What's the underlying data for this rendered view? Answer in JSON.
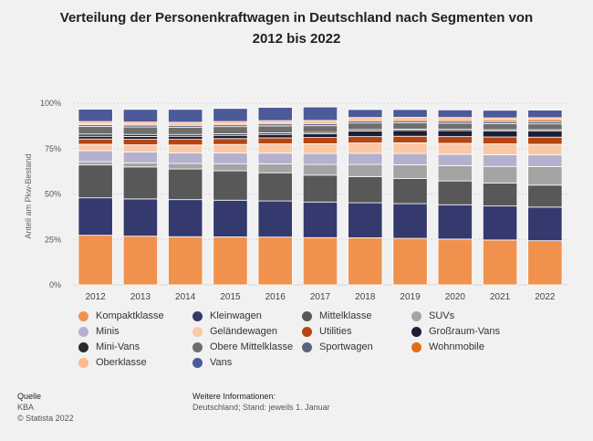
{
  "title": "Verteilung der Personenkraftwagen in Deutschland nach Segmenten von 2012 bis 2022",
  "footer": {
    "source_label": "Quelle",
    "source_name": "KBA",
    "copyright": "© Statista 2022",
    "info_label": "Weitere Informationen:",
    "info_text": "Deutschland; Stand: jeweils 1. Januar"
  },
  "chart_data": {
    "type": "bar",
    "stacked": true,
    "ylabel": "Anteil am Pkw-Bestand",
    "ylim": [
      0,
      100
    ],
    "yticks": [
      "0%",
      "25%",
      "50%",
      "75%",
      "100%"
    ],
    "ytick_values": [
      0,
      25,
      50,
      75,
      100
    ],
    "legend_position": "bottom",
    "grid": true,
    "categories": [
      "2012",
      "2013",
      "2014",
      "2015",
      "2016",
      "2017",
      "2018",
      "2019",
      "2020",
      "2021",
      "2022"
    ],
    "series": [
      {
        "name": "Kompaktklasse",
        "color": "#f0924e",
        "values": [
          27.3,
          26.8,
          26.5,
          26.4,
          26.3,
          26.0,
          25.9,
          25.6,
          25.2,
          24.7,
          24.3
        ]
      },
      {
        "name": "Kleinwagen",
        "color": "#343a6e",
        "values": [
          20.6,
          20.5,
          20.4,
          20.2,
          19.9,
          19.6,
          19.3,
          19.1,
          18.9,
          18.7,
          18.5
        ]
      },
      {
        "name": "Mittelklasse",
        "color": "#585858",
        "values": [
          18.1,
          17.6,
          16.9,
          16.2,
          15.5,
          14.8,
          14.3,
          13.8,
          13.1,
          12.6,
          12.1
        ]
      },
      {
        "name": "SUVs",
        "color": "#a4a4a4",
        "values": [
          1.8,
          2.3,
          3.0,
          3.9,
          4.9,
          5.9,
          6.8,
          7.6,
          8.4,
          9.2,
          10.2
        ]
      },
      {
        "name": "Minis",
        "color": "#b3b1cd",
        "values": [
          6.1,
          6.0,
          5.9,
          5.9,
          5.9,
          6.0,
          6.1,
          6.2,
          6.3,
          6.4,
          6.4
        ]
      },
      {
        "name": "Geländewagen",
        "color": "#fac8a6",
        "values": [
          3.5,
          3.9,
          4.3,
          4.7,
          5.1,
          5.4,
          5.7,
          5.9,
          6.0,
          6.0,
          5.9
        ]
      },
      {
        "name": "Utilities",
        "color": "#b54512",
        "values": [
          2.9,
          3.0,
          3.1,
          3.2,
          3.3,
          3.4,
          3.5,
          3.6,
          3.7,
          3.8,
          3.9
        ]
      },
      {
        "name": "Großraum-Vans",
        "color": "#1d1d34",
        "values": [
          1.5,
          1.6,
          1.7,
          1.8,
          1.9,
          2.0,
          3.1,
          3.2,
          3.3,
          3.4,
          3.5
        ]
      },
      {
        "name": "Mini-Vans",
        "color": "#2b2b2b",
        "values": [
          1.2,
          1.1,
          1.0,
          0.9,
          0.9,
          0.8,
          0.8,
          0.7,
          0.7,
          0.6,
          0.6
        ]
      },
      {
        "name": "Obere Mittelklasse",
        "color": "#6e6e6e",
        "values": [
          4.2,
          4.1,
          4.0,
          3.9,
          3.8,
          3.7,
          3.6,
          3.5,
          3.4,
          3.3,
          3.2
        ]
      },
      {
        "name": "Sportwagen",
        "color": "#5c6180",
        "values": [
          1.0,
          1.0,
          1.0,
          1.0,
          1.1,
          1.1,
          1.1,
          1.1,
          1.1,
          1.1,
          1.2
        ]
      },
      {
        "name": "Wohnmobile",
        "color": "#e46c12",
        "values": [
          0.6,
          0.6,
          0.6,
          0.7,
          0.7,
          0.7,
          0.8,
          0.8,
          0.9,
          1.0,
          1.1
        ]
      },
      {
        "name": "Oberklasse",
        "color": "#fbb98c",
        "values": [
          1.1,
          1.1,
          1.1,
          1.1,
          1.1,
          1.1,
          1.1,
          1.1,
          1.1,
          1.1,
          1.1
        ]
      },
      {
        "name": "Vans",
        "color": "#4c5a99",
        "values": [
          6.8,
          7.0,
          7.1,
          7.2,
          7.3,
          7.4,
          4.4,
          4.3,
          4.2,
          4.2,
          4.2
        ]
      }
    ]
  }
}
